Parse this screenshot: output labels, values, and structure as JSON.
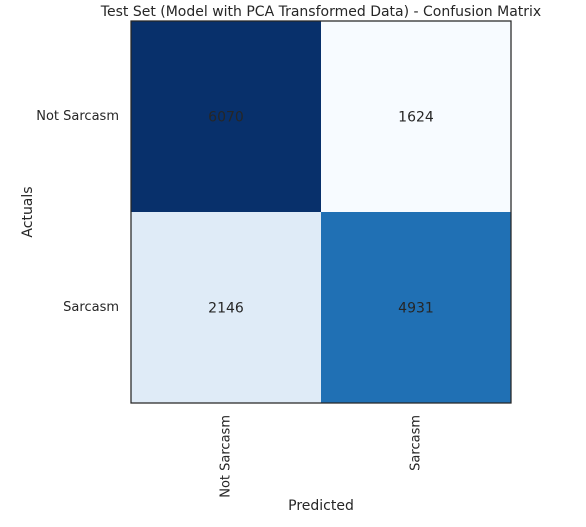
{
  "chart_data": {
    "type": "heatmap",
    "title": "Test Set (Model with PCA Transformed Data) - Confusion Matrix",
    "xlabel": "Predicted",
    "ylabel": "Actuals",
    "x_categories": [
      "Not Sarcasm",
      "Sarcasm"
    ],
    "y_categories": [
      "Not Sarcasm",
      "Sarcasm"
    ],
    "values": [
      [
        6070,
        1624
      ],
      [
        2146,
        4931
      ]
    ],
    "colormap": "Blues",
    "cell_colors": [
      [
        "#08306b",
        "#f7fbff"
      ],
      [
        "#dfebf7",
        "#2070b4"
      ]
    ],
    "text_color": "#000000",
    "grid": false,
    "legend": "none"
  }
}
